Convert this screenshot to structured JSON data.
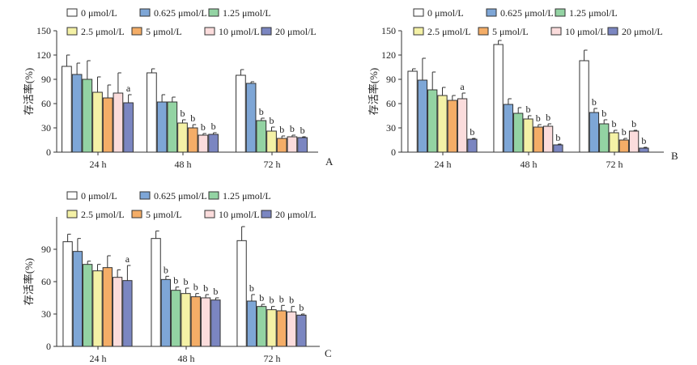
{
  "legend": [
    {
      "label": "0 μmol/L",
      "color": "#ffffff"
    },
    {
      "label": "0.625 μmol/L",
      "color": "#7ea6d6"
    },
    {
      "label": "1.25 μmol/L",
      "color": "#93d3a3"
    },
    {
      "label": "2.5 μmol/L",
      "color": "#f4f1a6"
    },
    {
      "label": "5 μmol/L",
      "color": "#f4ad67"
    },
    {
      "label": "10 μmol/L",
      "color": "#fbdcdc"
    },
    {
      "label": "20 μmol/L",
      "color": "#7b86c1"
    }
  ],
  "chart_data": [
    {
      "type": "bar",
      "panel_label": "A",
      "ylabel": "存活率(%)",
      "ylim": [
        0,
        150
      ],
      "yticks": [
        0,
        30,
        60,
        90,
        120,
        150
      ],
      "categories": [
        "24 h",
        "48 h",
        "72 h"
      ],
      "series": [
        {
          "name": "0 μmol/L",
          "values": [
            106,
            98,
            95
          ],
          "errors": [
            14,
            5,
            7
          ]
        },
        {
          "name": "0.625 μmol/L",
          "values": [
            96,
            62,
            85
          ],
          "errors": [
            14,
            9,
            2
          ]
        },
        {
          "name": "1.25 μmol/L",
          "values": [
            90,
            62,
            39
          ],
          "errors": [
            23,
            6,
            3
          ]
        },
        {
          "name": "2.5 μmol/L",
          "values": [
            74,
            36,
            26
          ],
          "errors": [
            19,
            4,
            5
          ]
        },
        {
          "name": "5 μmol/L",
          "values": [
            67,
            30,
            17
          ],
          "errors": [
            16,
            4,
            3
          ]
        },
        {
          "name": "10 μmol/L",
          "values": [
            73,
            21,
            19
          ],
          "errors": [
            25,
            2,
            2
          ]
        },
        {
          "name": "20 μmol/L",
          "values": [
            61,
            22,
            18
          ],
          "errors": [
            10,
            2,
            1
          ]
        }
      ],
      "annotations": [
        [
          "",
          "",
          "",
          "",
          "",
          "",
          "a"
        ],
        [
          "",
          "",
          "",
          "b",
          "b",
          "b",
          "b"
        ],
        [
          "",
          "",
          "b",
          "b",
          "b",
          "b",
          "b"
        ]
      ]
    },
    {
      "type": "bar",
      "panel_label": "B",
      "ylabel": "存活率(%)",
      "ylim": [
        0,
        150
      ],
      "yticks": [
        0,
        30,
        60,
        90,
        120,
        150
      ],
      "categories": [
        "24 h",
        "48 h",
        "72 h"
      ],
      "series": [
        {
          "name": "0 μmol/L",
          "values": [
            100,
            133,
            113
          ],
          "errors": [
            3,
            5,
            13
          ]
        },
        {
          "name": "0.625 μmol/L",
          "values": [
            89,
            59,
            49
          ],
          "errors": [
            27,
            7,
            5
          ]
        },
        {
          "name": "1.25 μmol/L",
          "values": [
            77,
            48,
            35
          ],
          "errors": [
            22,
            7,
            5
          ]
        },
        {
          "name": "2.5 μmol/L",
          "values": [
            70,
            41,
            24
          ],
          "errors": [
            10,
            4,
            3
          ]
        },
        {
          "name": "5 μmol/L",
          "values": [
            64,
            31,
            15
          ],
          "errors": [
            6,
            3,
            2
          ]
        },
        {
          "name": "10 μmol/L",
          "values": [
            66,
            32,
            26
          ],
          "errors": [
            7,
            3,
            1
          ]
        },
        {
          "name": "20 μmol/L",
          "values": [
            16,
            9,
            5
          ],
          "errors": [
            1,
            1,
            1
          ]
        }
      ],
      "annotations": [
        [
          "",
          "",
          "",
          "",
          "",
          "a",
          "b"
        ],
        [
          "",
          "",
          "",
          "b",
          "b",
          "b",
          "b"
        ],
        [
          "",
          "b",
          "b",
          "b",
          "b",
          "b",
          "b"
        ]
      ]
    },
    {
      "type": "bar",
      "panel_label": "C",
      "ylabel": "存活率(%)",
      "ylim": [
        0,
        120
      ],
      "yticks": [
        0,
        30,
        60,
        90
      ],
      "categories": [
        "24 h",
        "48 h",
        "72 h"
      ],
      "series": [
        {
          "name": "0 μmol/L",
          "values": [
            97,
            100,
            98
          ],
          "errors": [
            7,
            7,
            13
          ]
        },
        {
          "name": "0.625 μmol/L",
          "values": [
            88,
            62,
            42
          ],
          "errors": [
            12,
            3,
            6
          ]
        },
        {
          "name": "1.25 μmol/L",
          "values": [
            76,
            52,
            37
          ],
          "errors": [
            3,
            3,
            2
          ]
        },
        {
          "name": "2.5 μmol/L",
          "values": [
            70,
            49,
            34
          ],
          "errors": [
            6,
            5,
            3
          ]
        },
        {
          "name": "5 μmol/L",
          "values": [
            73,
            46,
            33
          ],
          "errors": [
            11,
            3,
            5
          ]
        },
        {
          "name": "10 μmol/L",
          "values": [
            64,
            45,
            32
          ],
          "errors": [
            7,
            3,
            5
          ]
        },
        {
          "name": "20 μmol/L",
          "values": [
            61,
            43,
            29
          ],
          "errors": [
            14,
            2,
            1
          ]
        }
      ],
      "annotations": [
        [
          "",
          "",
          "",
          "",
          "",
          "",
          "a"
        ],
        [
          "",
          "b",
          "b",
          "b",
          "b",
          "b",
          "b"
        ],
        [
          "",
          "b",
          "b",
          "b",
          "b",
          "b",
          "b"
        ]
      ]
    }
  ]
}
